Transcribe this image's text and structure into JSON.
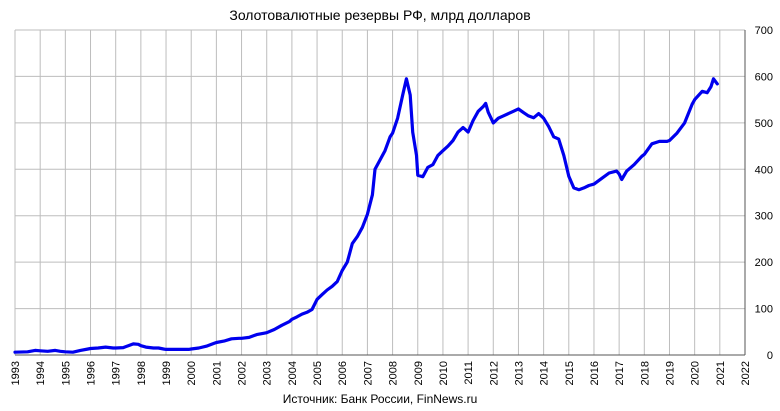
{
  "chart_data": {
    "type": "line",
    "title": "Золотовалютные резервы РФ, млрд долларов",
    "source": "Источник: Банк России, FinNews.ru",
    "xlabel": "",
    "ylabel": "",
    "xlim": [
      1993,
      2022
    ],
    "ylim": [
      0,
      700
    ],
    "y_ticks": [
      0,
      100,
      200,
      300,
      400,
      500,
      600,
      700
    ],
    "x_ticks": [
      1993,
      1994,
      1995,
      1996,
      1997,
      1998,
      1999,
      2000,
      2001,
      2002,
      2003,
      2004,
      2005,
      2006,
      2007,
      2008,
      2009,
      2010,
      2011,
      2012,
      2013,
      2014,
      2015,
      2016,
      2017,
      2018,
      2019,
      2020,
      2021,
      2022
    ],
    "y_axis_side": "right",
    "grid": true,
    "line_color": "#0000ee",
    "series": [
      {
        "points": [
          [
            1993.0,
            6
          ],
          [
            1993.5,
            7
          ],
          [
            1993.8,
            10
          ],
          [
            1994.0,
            9
          ],
          [
            1994.3,
            8
          ],
          [
            1994.6,
            10
          ],
          [
            1994.8,
            8
          ],
          [
            1995.0,
            7
          ],
          [
            1995.3,
            6
          ],
          [
            1995.6,
            10
          ],
          [
            1995.9,
            13
          ],
          [
            1996.0,
            14
          ],
          [
            1996.3,
            15
          ],
          [
            1996.6,
            17
          ],
          [
            1996.9,
            15
          ],
          [
            1997.0,
            15
          ],
          [
            1997.3,
            16
          ],
          [
            1997.5,
            20
          ],
          [
            1997.7,
            24
          ],
          [
            1997.9,
            23
          ],
          [
            1998.0,
            20
          ],
          [
            1998.2,
            17
          ],
          [
            1998.5,
            15
          ],
          [
            1998.7,
            15
          ],
          [
            1998.9,
            13
          ],
          [
            1999.0,
            12
          ],
          [
            1999.3,
            12
          ],
          [
            1999.6,
            12
          ],
          [
            1999.9,
            12
          ],
          [
            2000.0,
            13
          ],
          [
            2000.3,
            15
          ],
          [
            2000.6,
            19
          ],
          [
            2000.9,
            25
          ],
          [
            2001.0,
            27
          ],
          [
            2001.3,
            30
          ],
          [
            2001.6,
            35
          ],
          [
            2001.9,
            36
          ],
          [
            2002.0,
            36
          ],
          [
            2002.3,
            38
          ],
          [
            2002.6,
            44
          ],
          [
            2002.9,
            47
          ],
          [
            2003.0,
            48
          ],
          [
            2003.3,
            55
          ],
          [
            2003.6,
            64
          ],
          [
            2003.9,
            72
          ],
          [
            2004.0,
            77
          ],
          [
            2004.2,
            82
          ],
          [
            2004.4,
            88
          ],
          [
            2004.6,
            92
          ],
          [
            2004.8,
            98
          ],
          [
            2005.0,
            120
          ],
          [
            2005.2,
            130
          ],
          [
            2005.4,
            140
          ],
          [
            2005.6,
            148
          ],
          [
            2005.8,
            158
          ],
          [
            2006.0,
            182
          ],
          [
            2006.2,
            200
          ],
          [
            2006.4,
            240
          ],
          [
            2006.6,
            255
          ],
          [
            2006.8,
            275
          ],
          [
            2007.0,
            303
          ],
          [
            2007.2,
            345
          ],
          [
            2007.3,
            400
          ],
          [
            2007.5,
            420
          ],
          [
            2007.7,
            440
          ],
          [
            2007.9,
            470
          ],
          [
            2008.0,
            478
          ],
          [
            2008.2,
            510
          ],
          [
            2008.4,
            560
          ],
          [
            2008.55,
            595
          ],
          [
            2008.7,
            560
          ],
          [
            2008.8,
            480
          ],
          [
            2008.95,
            430
          ],
          [
            2009.0,
            387
          ],
          [
            2009.2,
            384
          ],
          [
            2009.4,
            404
          ],
          [
            2009.6,
            410
          ],
          [
            2009.8,
            430
          ],
          [
            2010.0,
            440
          ],
          [
            2010.2,
            450
          ],
          [
            2010.4,
            462
          ],
          [
            2010.6,
            480
          ],
          [
            2010.8,
            490
          ],
          [
            2011.0,
            480
          ],
          [
            2011.2,
            505
          ],
          [
            2011.4,
            525
          ],
          [
            2011.6,
            535
          ],
          [
            2011.7,
            542
          ],
          [
            2011.8,
            523
          ],
          [
            2012.0,
            500
          ],
          [
            2012.2,
            510
          ],
          [
            2012.4,
            515
          ],
          [
            2012.6,
            520
          ],
          [
            2012.8,
            525
          ],
          [
            2013.0,
            530
          ],
          [
            2013.2,
            522
          ],
          [
            2013.4,
            515
          ],
          [
            2013.6,
            511
          ],
          [
            2013.8,
            520
          ],
          [
            2014.0,
            510
          ],
          [
            2014.2,
            492
          ],
          [
            2014.4,
            470
          ],
          [
            2014.6,
            465
          ],
          [
            2014.8,
            430
          ],
          [
            2015.0,
            385
          ],
          [
            2015.2,
            360
          ],
          [
            2015.4,
            356
          ],
          [
            2015.6,
            360
          ],
          [
            2015.8,
            365
          ],
          [
            2016.0,
            368
          ],
          [
            2016.3,
            380
          ],
          [
            2016.6,
            392
          ],
          [
            2016.9,
            396
          ],
          [
            2017.0,
            390
          ],
          [
            2017.1,
            378
          ],
          [
            2017.3,
            396
          ],
          [
            2017.6,
            410
          ],
          [
            2017.9,
            428
          ],
          [
            2018.0,
            432
          ],
          [
            2018.3,
            455
          ],
          [
            2018.6,
            460
          ],
          [
            2018.9,
            460
          ],
          [
            2019.0,
            462
          ],
          [
            2019.3,
            478
          ],
          [
            2019.6,
            500
          ],
          [
            2019.9,
            540
          ],
          [
            2020.0,
            550
          ],
          [
            2020.3,
            568
          ],
          [
            2020.5,
            565
          ],
          [
            2020.65,
            578
          ],
          [
            2020.75,
            595
          ],
          [
            2020.9,
            584
          ]
        ]
      }
    ]
  }
}
